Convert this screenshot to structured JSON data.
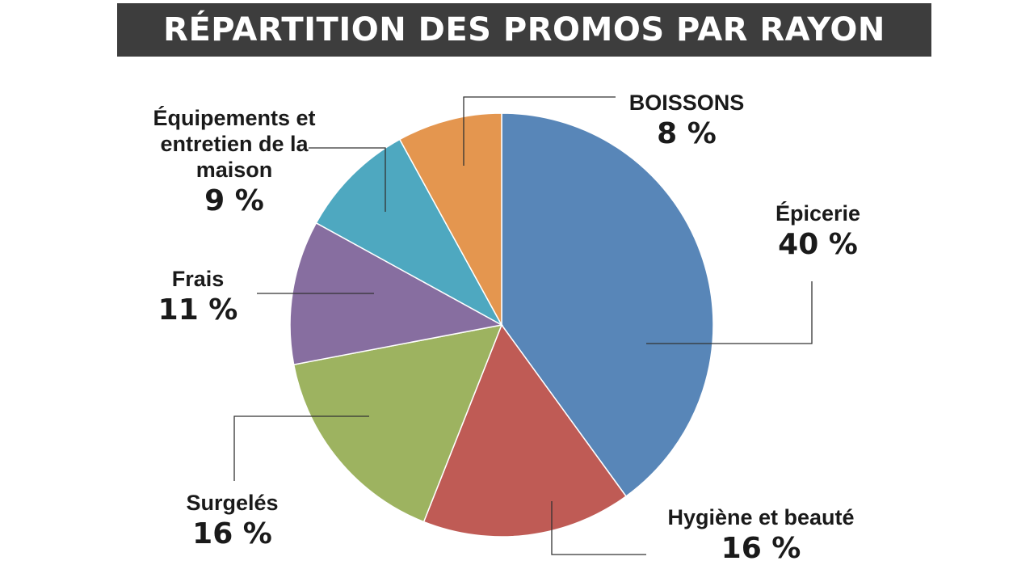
{
  "chart_data": {
    "type": "pie",
    "title": "RÉPARTITION DES PROMOS PAR RAYON",
    "slices": [
      {
        "label": "Épicerie",
        "value": 40,
        "value_label": "40 %",
        "color": "#5886b8"
      },
      {
        "label": "Hygiène et beauté",
        "value": 16,
        "value_label": "16 %",
        "color": "#bf5b55"
      },
      {
        "label": "Surgelés",
        "value": 16,
        "value_label": "16 %",
        "color": "#9db360"
      },
      {
        "label": "Frais",
        "value": 11,
        "value_label": "11 %",
        "color": "#876ea0"
      },
      {
        "label": "Équipements et entretien de la maison",
        "value": 9,
        "value_label": "9 %",
        "color": "#4ea8c0"
      },
      {
        "label": "BOISSONS",
        "value": 8,
        "value_label": "8 %",
        "color": "#e4964f"
      }
    ]
  }
}
